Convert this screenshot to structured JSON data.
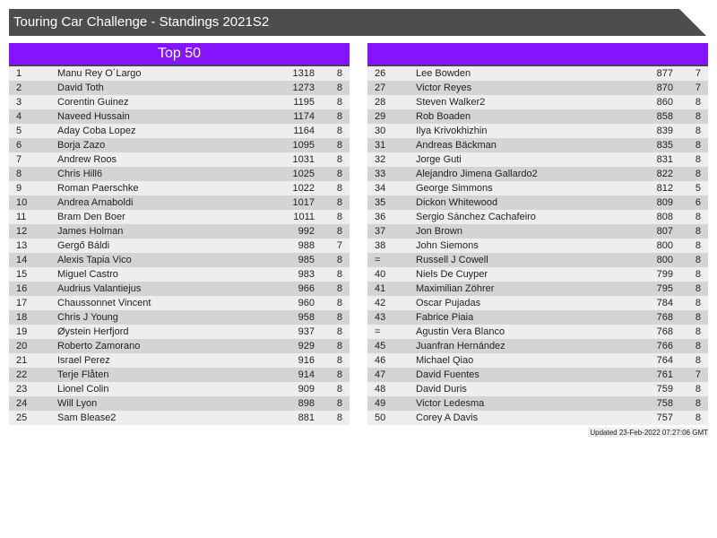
{
  "header": {
    "title": "Touring Car Challenge - Standings 2021S2"
  },
  "left_panel": {
    "title": "Top 50"
  },
  "right_panel": {
    "title": ""
  },
  "colors": {
    "title_bar": "#4d4d4d",
    "panel_header": "#8314fc",
    "row_light": "#eeeeee",
    "row_dark": "#d4d4d4"
  },
  "standings_left": [
    {
      "rank": "1",
      "name": "Manu Rey O´Largo",
      "points": "1318",
      "races": "8"
    },
    {
      "rank": "2",
      "name": "David Toth",
      "points": "1273",
      "races": "8"
    },
    {
      "rank": "3",
      "name": "Corentin Guinez",
      "points": "1195",
      "races": "8"
    },
    {
      "rank": "4",
      "name": "Naveed Hussain",
      "points": "1174",
      "races": "8"
    },
    {
      "rank": "5",
      "name": "Aday Coba Lopez",
      "points": "1164",
      "races": "8"
    },
    {
      "rank": "6",
      "name": "Borja Zazo",
      "points": "1095",
      "races": "8"
    },
    {
      "rank": "7",
      "name": "Andrew Roos",
      "points": "1031",
      "races": "8"
    },
    {
      "rank": "8",
      "name": "Chris Hill6",
      "points": "1025",
      "races": "8"
    },
    {
      "rank": "9",
      "name": "Roman Paerschke",
      "points": "1022",
      "races": "8"
    },
    {
      "rank": "10",
      "name": "Andrea Arnaboldi",
      "points": "1017",
      "races": "8"
    },
    {
      "rank": "11",
      "name": "Bram Den Boer",
      "points": "1011",
      "races": "8"
    },
    {
      "rank": "12",
      "name": "James Holman",
      "points": "992",
      "races": "8"
    },
    {
      "rank": "13",
      "name": "Gergő Báldi",
      "points": "988",
      "races": "7"
    },
    {
      "rank": "14",
      "name": "Alexis Tapia Vico",
      "points": "985",
      "races": "8"
    },
    {
      "rank": "15",
      "name": "Miguel Castro",
      "points": "983",
      "races": "8"
    },
    {
      "rank": "16",
      "name": "Audrius Valantiejus",
      "points": "966",
      "races": "8"
    },
    {
      "rank": "17",
      "name": "Chaussonnet Vincent",
      "points": "960",
      "races": "8"
    },
    {
      "rank": "18",
      "name": "Chris J Young",
      "points": "958",
      "races": "8"
    },
    {
      "rank": "19",
      "name": "Øystein Herfjord",
      "points": "937",
      "races": "8"
    },
    {
      "rank": "20",
      "name": "Roberto Zamorano",
      "points": "929",
      "races": "8"
    },
    {
      "rank": "21",
      "name": "Israel Perez",
      "points": "916",
      "races": "8"
    },
    {
      "rank": "22",
      "name": "Terje Flåten",
      "points": "914",
      "races": "8"
    },
    {
      "rank": "23",
      "name": "Lionel Colin",
      "points": "909",
      "races": "8"
    },
    {
      "rank": "24",
      "name": "Will Lyon",
      "points": "898",
      "races": "8"
    },
    {
      "rank": "25",
      "name": "Sam Blease2",
      "points": "881",
      "races": "8"
    }
  ],
  "standings_right": [
    {
      "rank": "26",
      "name": "Lee Bowden",
      "points": "877",
      "races": "7"
    },
    {
      "rank": "27",
      "name": "Victor Reyes",
      "points": "870",
      "races": "7"
    },
    {
      "rank": "28",
      "name": "Steven Walker2",
      "points": "860",
      "races": "8"
    },
    {
      "rank": "29",
      "name": "Rob Boaden",
      "points": "858",
      "races": "8"
    },
    {
      "rank": "30",
      "name": "Ilya Krivokhizhin",
      "points": "839",
      "races": "8"
    },
    {
      "rank": "31",
      "name": "Andreas Bäckman",
      "points": "835",
      "races": "8"
    },
    {
      "rank": "32",
      "name": "Jorge Guti",
      "points": "831",
      "races": "8"
    },
    {
      "rank": "33",
      "name": "Alejandro Jimena Gallardo2",
      "points": "822",
      "races": "8"
    },
    {
      "rank": "34",
      "name": "George Simmons",
      "points": "812",
      "races": "5"
    },
    {
      "rank": "35",
      "name": "Dickon Whitewood",
      "points": "809",
      "races": "6"
    },
    {
      "rank": "36",
      "name": "Sergio Sánchez Cachafeiro",
      "points": "808",
      "races": "8"
    },
    {
      "rank": "37",
      "name": "Jon Brown",
      "points": "807",
      "races": "8"
    },
    {
      "rank": "38",
      "name": "John Siemons",
      "points": "800",
      "races": "8"
    },
    {
      "rank": "=",
      "name": "Russell J Cowell",
      "points": "800",
      "races": "8"
    },
    {
      "rank": "40",
      "name": "Niels De Cuyper",
      "points": "799",
      "races": "8"
    },
    {
      "rank": "41",
      "name": "Maximilian Zöhrer",
      "points": "795",
      "races": "8"
    },
    {
      "rank": "42",
      "name": "Oscar Pujadas",
      "points": "784",
      "races": "8"
    },
    {
      "rank": "43",
      "name": "Fabrice Piaia",
      "points": "768",
      "races": "8"
    },
    {
      "rank": "=",
      "name": "Agustin Vera Blanco",
      "points": "768",
      "races": "8"
    },
    {
      "rank": "45",
      "name": "Juanfran Hernández",
      "points": "766",
      "races": "8"
    },
    {
      "rank": "46",
      "name": "Michael Qiao",
      "points": "764",
      "races": "8"
    },
    {
      "rank": "47",
      "name": "David Fuentes",
      "points": "761",
      "races": "7"
    },
    {
      "rank": "48",
      "name": "David Duris",
      "points": "759",
      "races": "8"
    },
    {
      "rank": "49",
      "name": "Victor Ledesma",
      "points": "758",
      "races": "8"
    },
    {
      "rank": "50",
      "name": "Corey A Davis",
      "points": "757",
      "races": "8"
    }
  ],
  "footer": {
    "updated": "Updated 23-Feb-2022 07:27:06 GMT"
  }
}
